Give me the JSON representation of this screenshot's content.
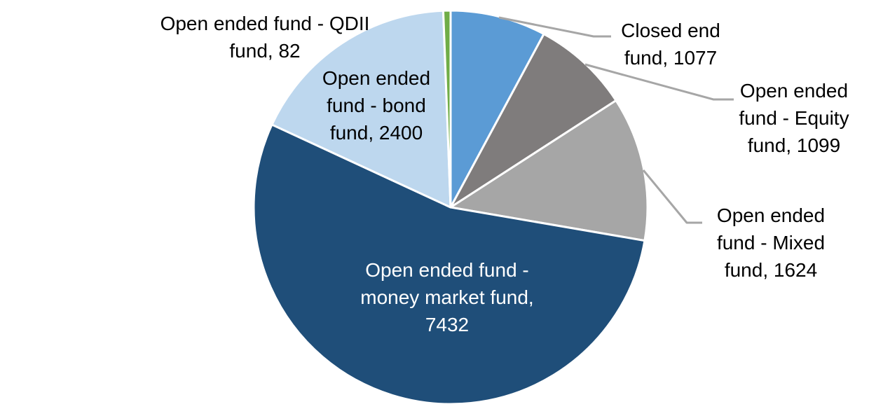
{
  "chart_data": {
    "type": "pie",
    "title": "",
    "legend": "none",
    "label_format": "category, value",
    "leader_line_color": "#A6A6A6",
    "categories": [
      "Closed end fund",
      "Open ended fund - Equity fund",
      "Open ended fund - Mixed fund",
      "Open ended fund - money market fund",
      "Open ended fund - bond fund",
      "Open ended fund - QDII fund"
    ],
    "values": [
      1077,
      1099,
      1624,
      7432,
      2400,
      82
    ],
    "slices": [
      {
        "id": "closed-end-fund",
        "name": "Closed end fund",
        "value": 1077,
        "color": "#5B9BD5",
        "label_color": "#000000",
        "label_lines": [
          "Closed end",
          "fund, 1077"
        ]
      },
      {
        "id": "open-ended-equity-fund",
        "name": "Open ended fund - Equity fund",
        "value": 1099,
        "color": "#7F7C7C",
        "label_color": "#000000",
        "label_lines": [
          "Open ended",
          "fund - Equity",
          "fund, 1099"
        ]
      },
      {
        "id": "open-ended-mixed-fund",
        "name": "Open ended fund - Mixed fund",
        "value": 1624,
        "color": "#A6A6A6",
        "label_color": "#000000",
        "label_lines": [
          "Open ended",
          "fund - Mixed",
          "fund, 1624"
        ]
      },
      {
        "id": "open-ended-money-market-fund",
        "name": "Open ended fund - money market fund",
        "value": 7432,
        "color": "#1F4E79",
        "label_color": "#FFFFFF",
        "label_lines": [
          "Open ended fund -",
          "money market fund,",
          "7432"
        ]
      },
      {
        "id": "open-ended-bond-fund",
        "name": "Open ended fund - bond fund",
        "value": 2400,
        "color": "#BDD7EE",
        "label_color": "#000000",
        "label_lines": [
          "Open ended",
          "fund - bond",
          "fund, 2400"
        ]
      },
      {
        "id": "open-ended-qdii-fund",
        "name": "Open ended fund - QDII fund",
        "value": 82,
        "color": "#70AD47",
        "label_color": "#000000",
        "label_lines": [
          "Open ended fund - QDII",
          "fund, 82"
        ]
      }
    ]
  }
}
